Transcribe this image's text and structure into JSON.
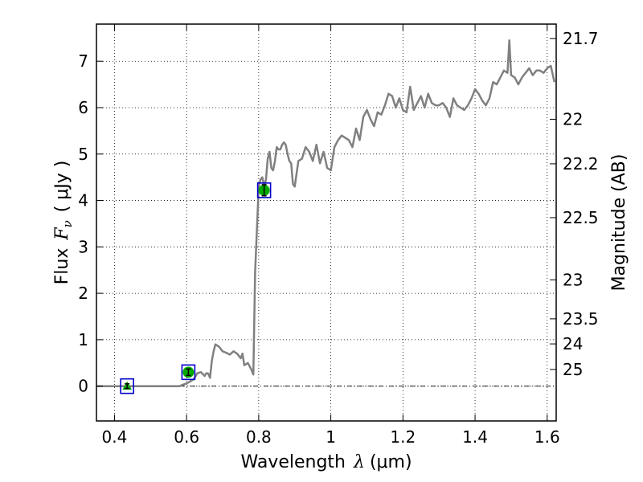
{
  "chart_data": {
    "type": "line",
    "xlabel_prefix": "Wavelength",
    "xlabel_symbol": "λ",
    "xlabel_unit": "(μm)",
    "ylabel_prefix": "Flux",
    "ylabel_symbol": "F",
    "ylabel_sub": "ν",
    "ylabel_unit": "( μJy )",
    "y2label": "Magnitude (AB)",
    "xlim": [
      0.35,
      1.625
    ],
    "ylim": [
      -0.75,
      7.8
    ],
    "xticks": [
      0.4,
      0.6,
      0.8,
      1,
      1.2,
      1.4,
      1.6
    ],
    "xtick_labels": [
      "0.4",
      "0.6",
      "0.8",
      "1",
      "1.2",
      "1.4",
      "1.6"
    ],
    "yticks": [
      0,
      1,
      2,
      3,
      4,
      5,
      6,
      7
    ],
    "ytick_labels": [
      "0",
      "1",
      "2",
      "3",
      "4",
      "5",
      "6",
      "7"
    ],
    "magnitude_ticks": [
      {
        "label": "21.7",
        "flux": 7.49
      },
      {
        "label": "22",
        "flux": 5.75
      },
      {
        "label": "22.2",
        "flux": 4.79
      },
      {
        "label": "22.5",
        "flux": 3.63
      },
      {
        "label": "23",
        "flux": 2.29
      },
      {
        "label": "23.5",
        "flux": 1.45
      },
      {
        "label": "24",
        "flux": 0.91
      },
      {
        "label": "25",
        "flux": 0.36
      }
    ],
    "grid": true,
    "zero_line": true,
    "series": [
      {
        "style": "line",
        "color": "#808080",
        "x": [
          0.35,
          0.4,
          0.5,
          0.58,
          0.59,
          0.6,
          0.61,
          0.62,
          0.63,
          0.64,
          0.65,
          0.655,
          0.66,
          0.665,
          0.67,
          0.675,
          0.68,
          0.69,
          0.7,
          0.71,
          0.72,
          0.73,
          0.74,
          0.75,
          0.755,
          0.76,
          0.77,
          0.78,
          0.785,
          0.79,
          0.8,
          0.805,
          0.81,
          0.815,
          0.82,
          0.825,
          0.83,
          0.835,
          0.84,
          0.845,
          0.85,
          0.855,
          0.86,
          0.865,
          0.87,
          0.875,
          0.88,
          0.885,
          0.89,
          0.895,
          0.9,
          0.91,
          0.92,
          0.93,
          0.94,
          0.95,
          0.96,
          0.97,
          0.98,
          0.99,
          1.0,
          1.01,
          1.02,
          1.03,
          1.04,
          1.05,
          1.06,
          1.07,
          1.08,
          1.09,
          1.1,
          1.11,
          1.12,
          1.13,
          1.14,
          1.15,
          1.16,
          1.17,
          1.18,
          1.19,
          1.2,
          1.21,
          1.22,
          1.23,
          1.24,
          1.25,
          1.26,
          1.27,
          1.28,
          1.29,
          1.3,
          1.31,
          1.32,
          1.33,
          1.34,
          1.35,
          1.36,
          1.37,
          1.38,
          1.39,
          1.4,
          1.41,
          1.42,
          1.43,
          1.44,
          1.45,
          1.46,
          1.47,
          1.48,
          1.49,
          1.495,
          1.5,
          1.51,
          1.52,
          1.53,
          1.54,
          1.55,
          1.56,
          1.57,
          1.58,
          1.59,
          1.6,
          1.61,
          1.62
        ],
        "y": [
          0,
          0,
          0,
          0,
          0.03,
          0.06,
          0.1,
          0.15,
          0.28,
          0.3,
          0.22,
          0.28,
          0.27,
          0.18,
          0.55,
          0.75,
          0.9,
          0.85,
          0.75,
          0.72,
          0.68,
          0.75,
          0.7,
          0.6,
          0.7,
          0.45,
          0.5,
          0.35,
          0.25,
          2.45,
          4.3,
          4.45,
          4.5,
          4.3,
          4.45,
          4.9,
          5.05,
          4.7,
          4.65,
          4.85,
          5.15,
          5.1,
          5.1,
          5.2,
          5.25,
          5.2,
          5.0,
          4.85,
          4.8,
          4.35,
          4.3,
          4.85,
          4.9,
          5.15,
          5.05,
          4.85,
          5.2,
          4.8,
          5.05,
          4.7,
          4.65,
          5.15,
          5.3,
          5.4,
          5.35,
          5.3,
          5.15,
          5.55,
          5.3,
          5.8,
          5.95,
          5.75,
          5.6,
          5.9,
          5.85,
          6.05,
          6.3,
          6.25,
          6.0,
          6.2,
          5.95,
          5.9,
          6.45,
          5.95,
          6.1,
          6.25,
          6.0,
          6.3,
          6.1,
          6.05,
          6.05,
          6.1,
          6.0,
          5.8,
          6.2,
          6.05,
          6.0,
          5.95,
          6.05,
          6.2,
          6.4,
          6.3,
          6.15,
          6.05,
          6.2,
          6.55,
          6.5,
          6.65,
          6.8,
          6.75,
          7.45,
          6.7,
          6.65,
          6.5,
          6.65,
          6.75,
          6.85,
          6.7,
          6.8,
          6.8,
          6.75,
          6.85,
          6.9,
          6.55
        ]
      },
      {
        "style": "points",
        "points": [
          {
            "x": 0.435,
            "y": 0.0,
            "err": 0.05,
            "marker": "triangle",
            "color": "#00aa00",
            "box_color": "#0000cc"
          },
          {
            "x": 0.605,
            "y": 0.3,
            "err": 0.07,
            "marker": "circle",
            "color": "#00aa00",
            "box_color": "#0000cc"
          },
          {
            "x": 0.815,
            "y": 4.22,
            "err": 0.12,
            "marker": "circle",
            "color": "#00aa00",
            "box_color": "#0000cc"
          }
        ]
      }
    ]
  }
}
